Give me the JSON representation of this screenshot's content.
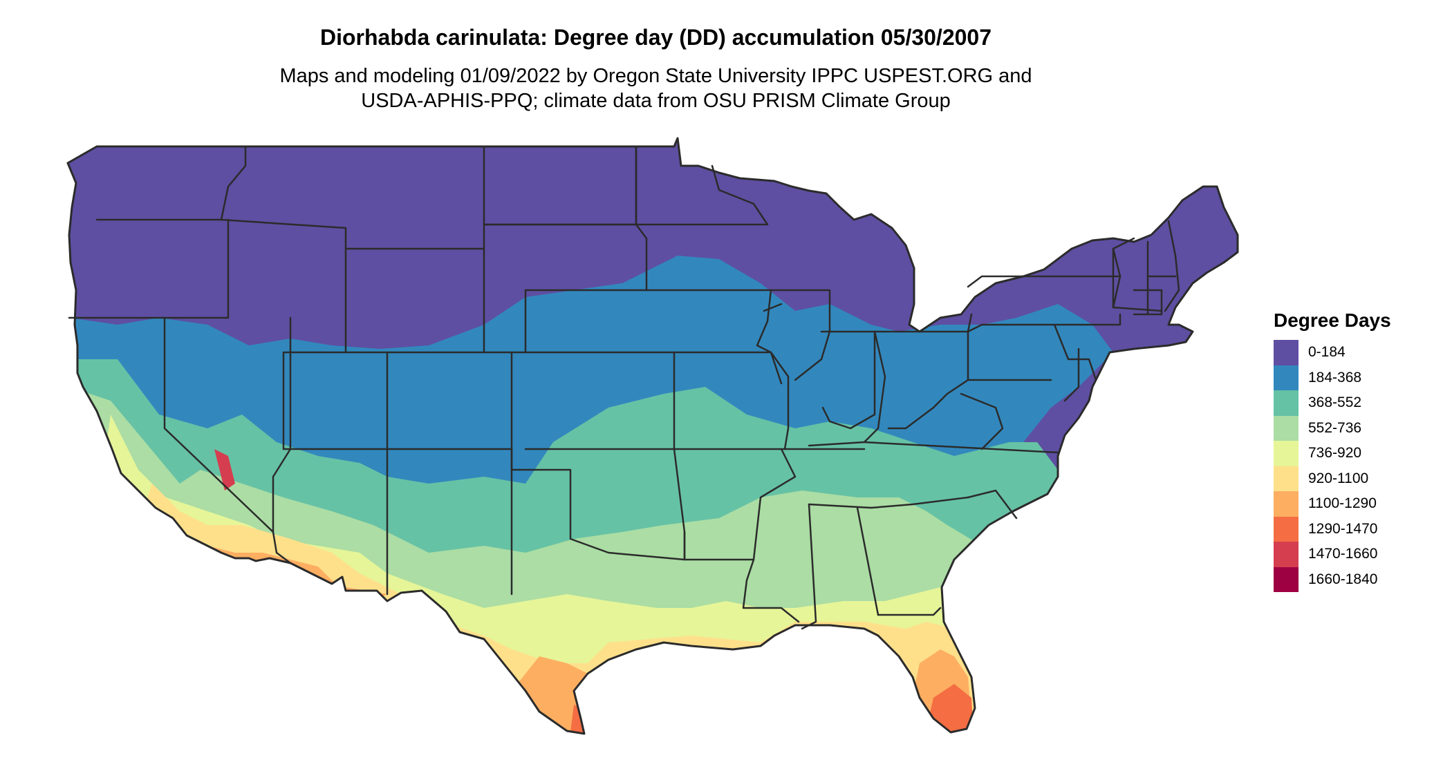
{
  "title": "Diorhabda carinulata: Degree day (DD) accumulation 05/30/2007",
  "subtitle_lines": [
    "Maps and modeling 01/09/2022 by Oregon State University IPPC USPEST.ORG and",
    "USDA-APHIS-PPQ; climate data from OSU PRISM Climate Group"
  ],
  "legend": {
    "title": "Degree Days",
    "items": [
      {
        "label": "0-184",
        "color": "#5e4fa2"
      },
      {
        "label": "184-368",
        "color": "#3288bd"
      },
      {
        "label": "368-552",
        "color": "#66c2a5"
      },
      {
        "label": "552-736",
        "color": "#abdda4"
      },
      {
        "label": "736-920",
        "color": "#e6f598"
      },
      {
        "label": "920-1100",
        "color": "#fee08b"
      },
      {
        "label": "1100-1290",
        "color": "#fdae61"
      },
      {
        "label": "1290-1470",
        "color": "#f46d43"
      },
      {
        "label": "1470-1660",
        "color": "#d53e4f"
      },
      {
        "label": "1660-1840",
        "color": "#9e0142"
      }
    ]
  },
  "map": {
    "region": "Contiguous United States",
    "border_color": "#2b2b2b"
  }
}
